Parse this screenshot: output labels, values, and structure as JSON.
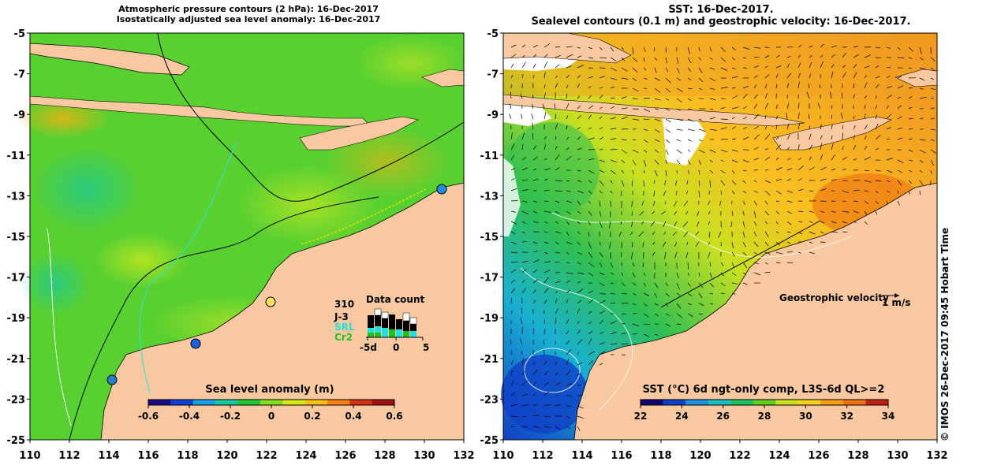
{
  "left_panel": {
    "title_line1": "Atmospheric pressure contours (2 hPa): 16-Dec-2017",
    "title_line2": "Isostatically adjusted sea level anomaly: 16-Dec-2017",
    "colorbar": {
      "title": "Sea level anomaly (m)",
      "ticks": [
        "-0.6",
        "-0.4",
        "-0.2",
        "0",
        "0.2",
        "0.4",
        "0.6"
      ],
      "colors": [
        "#1a0a8c",
        "#1040d8",
        "#16a0e8",
        "#18c8a0",
        "#20c830",
        "#80e020",
        "#d8e818",
        "#f8c010",
        "#f88010",
        "#d83010",
        "#a01010"
      ]
    },
    "data_count": {
      "heading": "Data count",
      "total": "310",
      "legend": [
        {
          "label": "J-3",
          "color": "#000000"
        },
        {
          "label": "SRL",
          "color": "#20e0e0"
        },
        {
          "label": "Cr2",
          "color": "#20c020"
        }
      ],
      "axis_labels": [
        "-5d",
        "0",
        "5"
      ]
    }
  },
  "right_panel": {
    "title_line1": "SST: 16-Dec-2017.",
    "title_line2": "Sealevel contours (0.1 m) and geostrophic velocity: 16-Dec-2017.",
    "velocity_legend": "Geostrophic velocity",
    "velocity_scale": "1 m/s",
    "colorbar": {
      "title": "SST (°C) 6d ngt-only comp, L3S-6d QL>=2",
      "ticks": [
        "22",
        "24",
        "26",
        "28",
        "30",
        "32",
        "34"
      ],
      "colors": [
        "#100870",
        "#1040c8",
        "#1a90e0",
        "#18c0c0",
        "#20c060",
        "#60d020",
        "#c8e020",
        "#f8d020",
        "#f8a010",
        "#f07010",
        "#c02010"
      ]
    }
  },
  "axes": {
    "lat_ticks": [
      "-5",
      "-7",
      "-9",
      "-11",
      "-13",
      "-15",
      "-17",
      "-19",
      "-21",
      "-23",
      "-25"
    ],
    "lon_ticks": [
      "110",
      "112",
      "114",
      "116",
      "118",
      "120",
      "122",
      "124",
      "126",
      "128",
      "130",
      "132"
    ]
  },
  "colors": {
    "land": "#f8c8a0",
    "ocean_anomaly": "#58d030",
    "sst_warm": "#f0a020"
  },
  "credit": "© IMOS 26-Dec-2017 09:45 Hobart Time"
}
